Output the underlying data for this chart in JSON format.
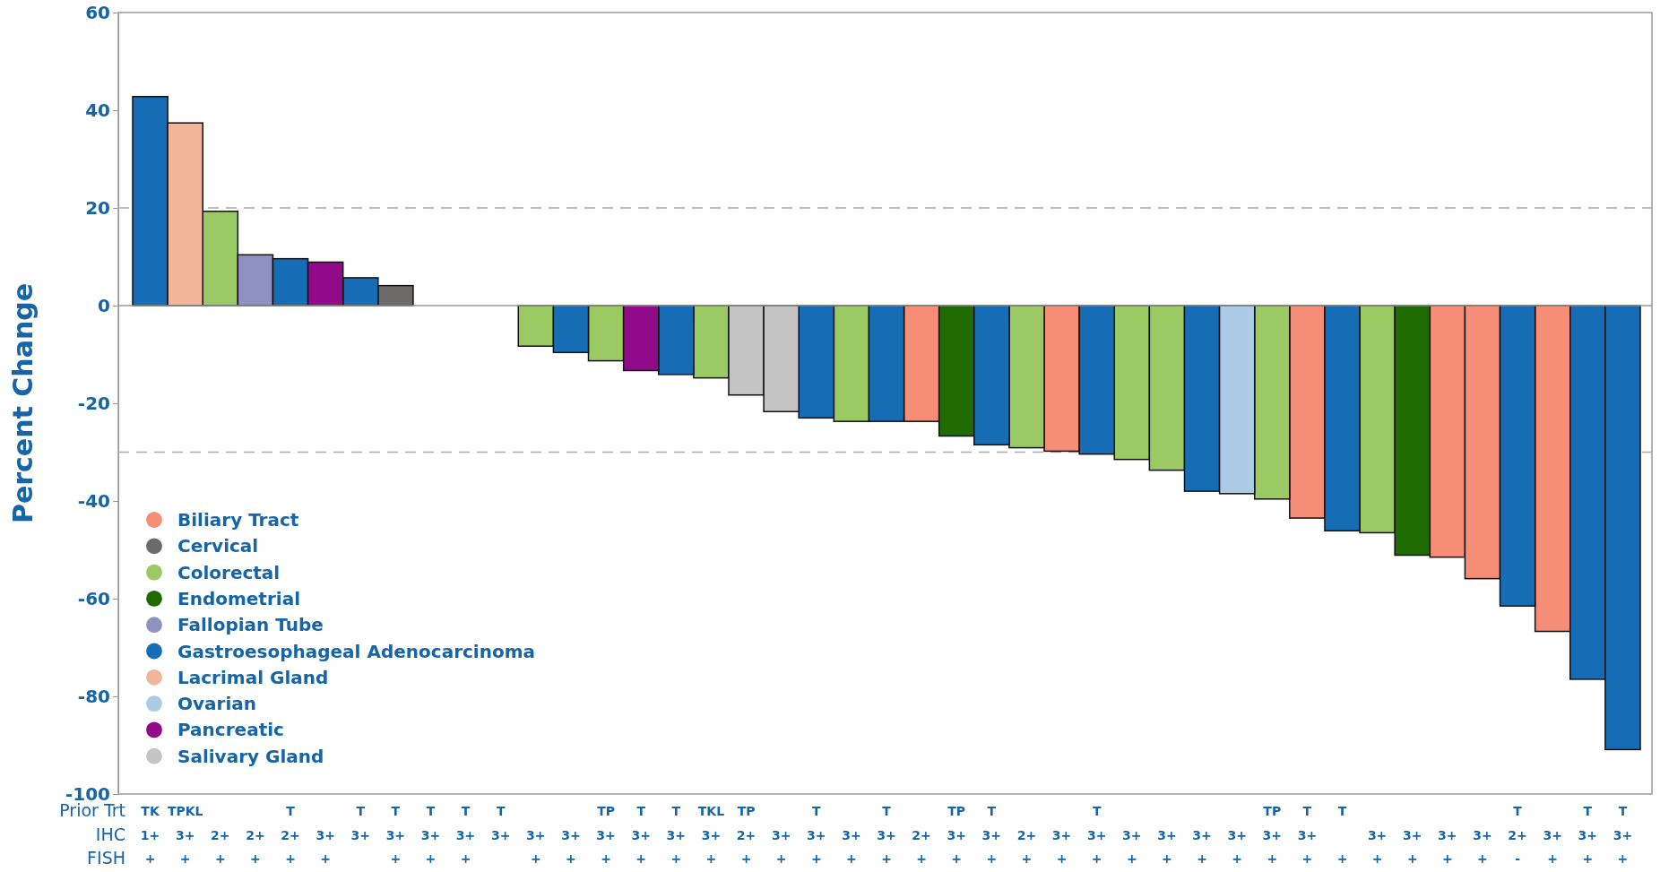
{
  "chart_data": {
    "type": "bar",
    "ylabel": "Percent Change",
    "categories": [
      "TK\n1+\n+",
      "TPKL\n3+\n+",
      "\n2+\n+",
      "\n2+\n+",
      "T\n2+\n+",
      "\n3+\n+",
      "T\n3+\n",
      "T\n3+\n+",
      "T\n3+\n+",
      "T\n3+\n+",
      "T\n3+\n",
      "\n3+\n+",
      "\n3+\n+",
      "TP\n3+\n+",
      "T\n3+\n+",
      "T\n3+\n+",
      "TKL\n3+\n+",
      "TP\n2+\n+",
      "\n3+\n+",
      "T\n3+\n+",
      "\n3+\n+",
      "T\n3+\n+",
      "\n2+\n+",
      "TP\n3+\n+",
      "T\n3+\n+",
      "\n2+\n+",
      "\n3+\n+",
      "T\n3+\n+",
      "\n3+\n+",
      "\n3+\n+",
      "\n3+\n+",
      "\n3+\n+",
      "TP\n3+\n+",
      "T\n3+\n+",
      "T\n\n+",
      "\n3+\n+",
      "\n3+\n+",
      "\n3+\n+",
      "\n3+\n+",
      "T\n2+\n-",
      "\n3+\n+",
      "T\n3+\n+",
      "T\n3+\n+"
    ],
    "annotations": [
      "Prior Trt",
      "IHC",
      "FISH"
    ],
    "series": [
      {
        "name": "Biliary Tract",
        "color": "#f58d77",
        "values": [
          null,
          null,
          null,
          null,
          null,
          null,
          null,
          null,
          null,
          null,
          null,
          null,
          null,
          null,
          null,
          null,
          null,
          null,
          null,
          null,
          null,
          null,
          -23.7,
          null,
          null,
          null,
          -29.8,
          null,
          null,
          null,
          null,
          null,
          null,
          -43.5,
          null,
          null,
          null,
          -51.5,
          -55.9,
          null,
          -66.7,
          null,
          null
        ]
      },
      {
        "name": "Cervical",
        "color": "#6d6a6a",
        "values": [
          null,
          null,
          null,
          null,
          null,
          null,
          null,
          4.1,
          null,
          null,
          null,
          null,
          null,
          null,
          null,
          null,
          null,
          null,
          null,
          null,
          null,
          null,
          null,
          null,
          null,
          null,
          null,
          null,
          null,
          null,
          null,
          null,
          null,
          null,
          null,
          null,
          null,
          null,
          null,
          null,
          null,
          null,
          null
        ]
      },
      {
        "name": "Colorectal",
        "color": "#9bc963",
        "values": [
          null,
          null,
          19.3,
          null,
          null,
          null,
          null,
          null,
          null,
          null,
          null,
          -8.3,
          null,
          -11.3,
          null,
          null,
          -14.8,
          null,
          null,
          null,
          -23.7,
          null,
          null,
          null,
          null,
          -29.1,
          null,
          null,
          -31.5,
          -33.7,
          null,
          null,
          -39.6,
          null,
          null,
          -46.5,
          null,
          null,
          null,
          null,
          null,
          null,
          null
        ]
      },
      {
        "name": "Endometrial",
        "color": "#1f6b00",
        "values": [
          null,
          null,
          null,
          null,
          null,
          null,
          null,
          null,
          null,
          null,
          null,
          null,
          null,
          null,
          null,
          null,
          null,
          null,
          null,
          null,
          null,
          null,
          null,
          -26.7,
          null,
          null,
          null,
          null,
          null,
          null,
          null,
          null,
          null,
          null,
          null,
          null,
          -51.1,
          null,
          null,
          null,
          null,
          null,
          null
        ]
      },
      {
        "name": "Fallopian Tube",
        "color": "#8e92c3",
        "values": [
          null,
          null,
          null,
          10.4,
          null,
          null,
          null,
          null,
          null,
          null,
          null,
          null,
          null,
          null,
          null,
          null,
          null,
          null,
          null,
          null,
          null,
          null,
          null,
          null,
          null,
          null,
          null,
          null,
          null,
          null,
          null,
          null,
          null,
          null,
          null,
          null,
          null,
          null,
          null,
          null,
          null,
          null,
          null
        ]
      },
      {
        "name": "Gastroesophageal Adenocarcinoma",
        "color": "#176db5",
        "values": [
          42.8,
          null,
          null,
          null,
          9.6,
          null,
          5.7,
          null,
          null,
          null,
          null,
          null,
          -9.6,
          null,
          null,
          -14.1,
          null,
          null,
          null,
          -23.0,
          null,
          -23.7,
          null,
          null,
          -28.5,
          null,
          null,
          -30.4,
          null,
          null,
          -38.0,
          null,
          null,
          null,
          -46.1,
          null,
          null,
          null,
          null,
          -61.5,
          null,
          -76.5,
          -90.9
        ]
      },
      {
        "name": "Lacrimal Gland",
        "color": "#f2b599",
        "values": [
          null,
          37.4,
          null,
          null,
          null,
          null,
          null,
          null,
          null,
          null,
          null,
          null,
          null,
          null,
          null,
          null,
          null,
          null,
          null,
          null,
          null,
          null,
          null,
          null,
          null,
          null,
          null,
          null,
          null,
          null,
          null,
          null,
          null,
          null,
          null,
          null,
          null,
          null,
          null,
          null,
          null,
          null,
          null
        ]
      },
      {
        "name": "Ovarian",
        "color": "#abcbe6",
        "values": [
          null,
          null,
          null,
          null,
          null,
          null,
          null,
          null,
          null,
          null,
          null,
          null,
          null,
          null,
          null,
          null,
          null,
          null,
          null,
          null,
          null,
          null,
          null,
          null,
          null,
          null,
          null,
          null,
          null,
          null,
          null,
          -38.5,
          null,
          null,
          null,
          null,
          null,
          null,
          null,
          null,
          null,
          null,
          null
        ]
      },
      {
        "name": "Pancreatic",
        "color": "#900a8a",
        "values": [
          null,
          null,
          null,
          null,
          null,
          8.9,
          null,
          null,
          null,
          null,
          null,
          null,
          null,
          null,
          -13.3,
          null,
          null,
          null,
          null,
          null,
          null,
          null,
          null,
          null,
          null,
          null,
          null,
          null,
          null,
          null,
          null,
          null,
          null,
          null,
          null,
          null,
          null,
          null,
          null,
          null,
          null,
          null,
          null
        ]
      },
      {
        "name": "Salivary Gland",
        "color": "#c4c4c4",
        "values": [
          null,
          null,
          null,
          null,
          null,
          null,
          null,
          null,
          null,
          null,
          null,
          null,
          null,
          null,
          null,
          null,
          null,
          -18.3,
          -21.7,
          null,
          null,
          null,
          null,
          null,
          null,
          null,
          null,
          null,
          null,
          null,
          null,
          null,
          null,
          null,
          null,
          null,
          null,
          null,
          null,
          null,
          null,
          null,
          null
        ]
      }
    ],
    "ylim": [
      -100,
      60
    ],
    "yticks": [
      -100,
      -80,
      -60,
      -40,
      -20,
      0,
      20,
      40,
      60
    ],
    "ref_lines": [
      {
        "axis": "y",
        "value": 20,
        "color": "#aaaaaa",
        "line_style": "dashed"
      },
      {
        "axis": "y",
        "value": -30,
        "color": "#aaaaaa",
        "line_style": "dashed"
      }
    ],
    "legend": "bottom left",
    "marker": "circle"
  }
}
